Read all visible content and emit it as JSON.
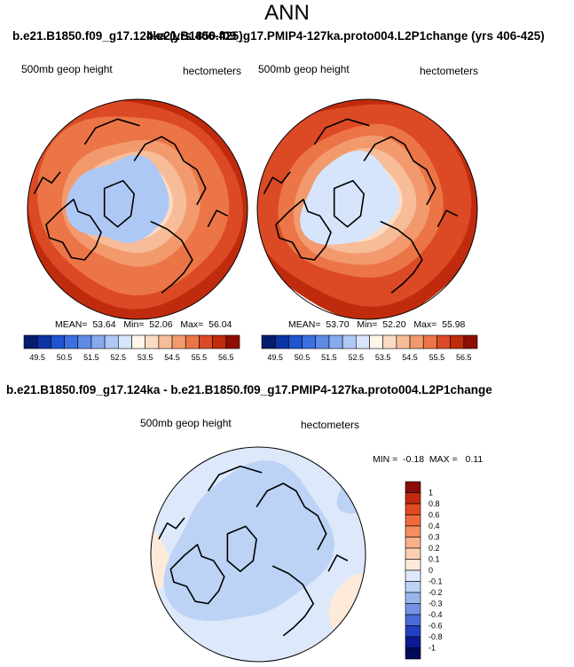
{
  "page_title": "ANN",
  "chart_data": [
    {
      "type": "heatmap",
      "title": "b.e21.B1850.f09_g17.124ka (yrs 406-425)",
      "overlap_title": "b.e21.B1850.f09_g17.PMIP4-127ka.proto004.L2P1change (yrs 406-425)",
      "variable": "500mb geop height",
      "units": "hectometers",
      "projection": "north polar stereographic",
      "mean_label": "MEAN=",
      "mean": "53.64",
      "min_label": "Min=",
      "min": "52.06",
      "max_label": "Max=",
      "max": "56.04",
      "legend_ticks": [
        "49.5",
        "50.5",
        "51.5",
        "52.5",
        "53.5",
        "54.5",
        "55.5",
        "56.5"
      ],
      "legend_colors": [
        "#051b6e",
        "#0d34a5",
        "#1f53cf",
        "#3c6fe0",
        "#5f8be7",
        "#87a9ee",
        "#aec8f5",
        "#d6e5fb",
        "#fff5e8",
        "#fbdcc3",
        "#f7bc98",
        "#f29a6e",
        "#ec7547",
        "#dc4a25",
        "#c12b0d",
        "#8f0c00"
      ],
      "pole_value": 52.2,
      "ring_values": [
        52.4,
        53.1,
        53.6,
        54.0,
        54.4,
        54.8,
        55.2,
        55.6,
        55.95
      ]
    },
    {
      "type": "heatmap",
      "title": "b.e21.B1850.f09_g17.PMIP4-127ka.proto004.L2P1change (yrs 406-425)",
      "variable": "500mb geop height",
      "units": "hectometers",
      "projection": "north polar stereographic",
      "mean_label": "MEAN=",
      "mean": "53.70",
      "min_label": "Min=",
      "min": "52.20",
      "max_label": "Max=",
      "max": "55.98",
      "legend_ticks": [
        "49.5",
        "50.5",
        "51.5",
        "52.5",
        "53.5",
        "54.5",
        "55.5",
        "56.5"
      ],
      "legend_colors": [
        "#051b6e",
        "#0d34a5",
        "#1f53cf",
        "#3c6fe0",
        "#5f8be7",
        "#87a9ee",
        "#aec8f5",
        "#d6e5fb",
        "#fff5e8",
        "#fbdcc3",
        "#f7bc98",
        "#f29a6e",
        "#ec7547",
        "#dc4a25",
        "#c12b0d",
        "#8f0c00"
      ],
      "pole_value": 52.3,
      "ring_values": [
        52.5,
        53.2,
        53.7,
        54.1,
        54.5,
        54.9,
        55.3,
        55.65,
        55.95
      ]
    },
    {
      "type": "heatmap",
      "title": "b.e21.B1850.f09_g17.124ka - b.e21.B1850.f09_g17.PMIP4-127ka.proto004.L2P1change",
      "variable": "500mb geop height",
      "units": "hectometers",
      "projection": "north polar stereographic",
      "min_label": "MIN =",
      "min": "-0.18",
      "max_label": "MAX =",
      "max": "0.11",
      "legend_ticks": [
        "1",
        "0.8",
        "0.6",
        "0.4",
        "0.3",
        "0.2",
        "0.1",
        "0",
        "-0.1",
        "-0.2",
        "-0.3",
        "-0.4",
        "-0.6",
        "-0.8",
        "-1"
      ],
      "legend_colors": [
        "#8b0a0a",
        "#c1290f",
        "#e24a1f",
        "#f06a3d",
        "#f58e60",
        "#f8b08a",
        "#fbceb0",
        "#fdeadb",
        "#dde9fb",
        "#bcd3f6",
        "#98b6ee",
        "#7293e3",
        "#4a6bd8",
        "#2240c2",
        "#0b1a93",
        "#030a5a"
      ],
      "pole_value": -0.1,
      "ring_values": [
        -0.1,
        -0.05,
        0.0
      ]
    }
  ]
}
